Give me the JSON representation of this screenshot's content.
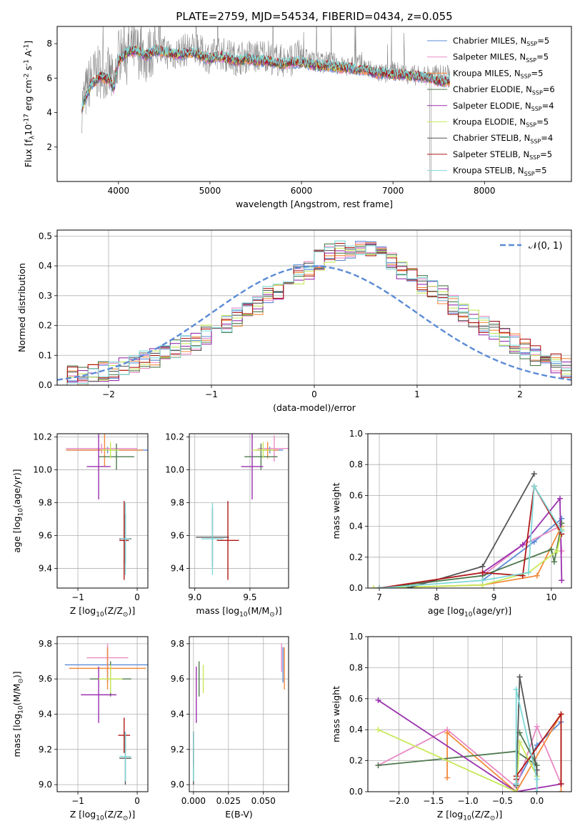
{
  "figure": {
    "title": "PLATE=2759, MJD=54534, FIBERID=0434, z=0.055"
  },
  "models": [
    {
      "label": "Chabrier MILES, N$_{SSP}$=5",
      "name": "Chabrier MILES",
      "nssp": "5",
      "color": "#5b8bd6"
    },
    {
      "label": "Salpeter MILES, N$_{SSP}$=5",
      "name": "Salpeter MILES",
      "nssp": "5",
      "color": "#e98ac5"
    },
    {
      "label": "Kroupa MILES, N$_{SSP}$=5",
      "name": "Kroupa MILES",
      "nssp": "5",
      "color": "#f28a3c"
    },
    {
      "label": "Chabrier ELODIE, N$_{SSP}$=6",
      "name": "Chabrier ELODIE",
      "nssp": "6",
      "color": "#4f7a4f"
    },
    {
      "label": "Salpeter ELODIE, N$_{SSP}$=4",
      "name": "Salpeter ELODIE",
      "nssp": "4",
      "color": "#9a30ae"
    },
    {
      "label": "Kroupa ELODIE, N$_{SSP}$=5",
      "name": "Kroupa ELODIE",
      "nssp": "5",
      "color": "#c8e85a"
    },
    {
      "label": "Chabrier STELIB, N$_{SSP}$=4",
      "name": "Chabrier STELIB",
      "nssp": "4",
      "color": "#555555"
    },
    {
      "label": "Salpeter STELIB, N$_{SSP}$=5",
      "name": "Salpeter STELIB",
      "nssp": "5",
      "color": "#b01818"
    },
    {
      "label": "Kroupa STELIB, N$_{SSP}$=5",
      "name": "Kroupa STELIB",
      "nssp": "5",
      "color": "#7fd8d8"
    }
  ],
  "chart_data": [
    {
      "type": "line",
      "id": "spectrum",
      "title": "PLATE=2759, MJD=54534, FIBERID=0434, z=0.055",
      "xlabel": "wavelength [Angstrom, rest frame]",
      "ylabel": "Flux [f$_\\lambda$10$^{-17}$ erg cm$^{-2}$ s$^{-1}$ A$^{-1}$]",
      "xlim": [
        3330,
        8950
      ],
      "ylim": [
        0,
        9
      ],
      "xticks": [
        4000,
        5000,
        6000,
        7000,
        8000
      ],
      "yticks": [
        2,
        4,
        6,
        8
      ],
      "data_color": "#888888",
      "data_x": [
        3600,
        3700,
        3800,
        3900,
        3950,
        4000,
        4100,
        4200,
        4300,
        4400,
        4500,
        4600,
        4700,
        4800,
        4900,
        5000,
        5100,
        5200,
        5300,
        5400,
        5500,
        5600,
        5700,
        5800,
        5900,
        6000,
        6100,
        6200,
        6300,
        6400,
        6500,
        6600,
        6700,
        6800,
        6900,
        7000,
        7100,
        7200,
        7300,
        7400
      ],
      "data_y": [
        4.4,
        6.0,
        6.4,
        6.2,
        5.6,
        7.3,
        7.7,
        7.6,
        7.2,
        7.8,
        7.5,
        7.4,
        7.6,
        7.7,
        7.5,
        7.2,
        7.5,
        7.3,
        7.1,
        7.3,
        7.2,
        7.4,
        7.1,
        7.0,
        7.1,
        7.3,
        7.0,
        6.9,
        7.0,
        6.8,
        6.6,
        6.9,
        6.6,
        6.4,
        6.2,
        6.4,
        6.3,
        6.2,
        6.1,
        6.2
      ],
      "model_x": [
        3600,
        3700,
        3800,
        3900,
        3950,
        4000,
        4100,
        4200,
        4300,
        4400,
        4500,
        4600,
        4700,
        4800,
        4900,
        5000,
        5100,
        5200,
        5300,
        5400,
        5500,
        5600,
        5700,
        5800,
        5900,
        6000,
        6100,
        6200,
        6300,
        6400,
        6500,
        6600,
        6700,
        6800,
        6900,
        7000,
        7100,
        7200,
        7300,
        7400,
        7500,
        7600
      ],
      "model_y": [
        4.3,
        5.6,
        6.1,
        5.9,
        5.4,
        7.0,
        7.5,
        7.6,
        7.3,
        7.6,
        7.5,
        7.4,
        7.4,
        7.5,
        7.3,
        7.1,
        7.3,
        7.1,
        7.0,
        7.1,
        7.0,
        7.0,
        6.9,
        6.8,
        6.9,
        6.9,
        6.8,
        6.7,
        6.7,
        6.6,
        6.6,
        6.5,
        6.5,
        6.3,
        6.3,
        6.2,
        6.2,
        6.1,
        6.1,
        6.0,
        5.8,
        5.8
      ],
      "legend_loc": "upper right"
    },
    {
      "type": "line",
      "id": "residuals",
      "xlabel": "(data-model)/error",
      "ylabel": "Normed distribution",
      "xlim": [
        -2.5,
        2.5
      ],
      "ylim": [
        0,
        0.52
      ],
      "xticks": [
        -2,
        -1,
        0,
        1,
        2
      ],
      "yticks": [
        0.0,
        0.1,
        0.2,
        0.3,
        0.4,
        0.5
      ],
      "ytick_labels": [
        "0.0",
        "0.1",
        "0.2",
        "0.3",
        "0.4",
        "0.5"
      ],
      "bin_width": 0.1,
      "bins_start": -2.5,
      "hist": [
        0.03,
        0.03,
        0.035,
        0.04,
        0.045,
        0.05,
        0.06,
        0.07,
        0.08,
        0.09,
        0.105,
        0.12,
        0.135,
        0.15,
        0.17,
        0.19,
        0.21,
        0.23,
        0.25,
        0.27,
        0.3,
        0.32,
        0.34,
        0.37,
        0.39,
        0.42,
        0.44,
        0.45,
        0.46,
        0.46,
        0.45,
        0.43,
        0.41,
        0.39,
        0.36,
        0.34,
        0.32,
        0.3,
        0.27,
        0.24,
        0.22,
        0.2,
        0.18,
        0.16,
        0.14,
        0.12,
        0.1,
        0.085,
        0.07,
        0.06
      ],
      "normal_label": "$\\mathcal{N}(0, 1)$",
      "normal_color": "#5b8bd6",
      "legend_loc": "upper right"
    },
    {
      "type": "scatter",
      "id": "age-vs-Z",
      "xlabel": "Z [log$_{10}$(Z/Z$_\\odot$)]",
      "ylabel": "age  [log$_{10}$(age/yr)]",
      "xlim": [
        -1.35,
        0.18
      ],
      "ylim": [
        9.28,
        10.22
      ],
      "xticks": [
        -1,
        0
      ],
      "yticks": [
        9.4,
        9.6,
        9.8,
        10.0,
        10.2
      ],
      "ytick_labels": [
        "9.4",
        "9.6",
        "9.8",
        "10.0",
        "10.2"
      ],
      "points": [
        {
          "x": -0.5,
          "y": 10.12,
          "xerr": 0.7,
          "yerr": 0.02,
          "model": 0
        },
        {
          "x": -0.6,
          "y": 10.13,
          "xerr": 0.6,
          "yerr": 0.03,
          "model": 1
        },
        {
          "x": -0.55,
          "y": 10.12,
          "xerr": 0.65,
          "yerr": 0.1,
          "model": 2
        },
        {
          "x": -0.35,
          "y": 10.08,
          "xerr": 0.3,
          "yerr": 0.08,
          "model": 3
        },
        {
          "x": -0.65,
          "y": 10.02,
          "xerr": 0.2,
          "yerr": 0.2,
          "model": 4
        },
        {
          "x": -0.45,
          "y": 10.12,
          "xerr": 0.15,
          "yerr": 0.05,
          "model": 5
        },
        {
          "x": -0.2,
          "y": 9.58,
          "xerr": 0.1,
          "yerr": 0.15,
          "model": 6
        },
        {
          "x": -0.22,
          "y": 9.57,
          "xerr": 0.08,
          "yerr": 0.24,
          "model": 7
        },
        {
          "x": -0.2,
          "y": 9.58,
          "xerr": 0.08,
          "yerr": 0.22,
          "model": 8
        }
      ]
    },
    {
      "type": "scatter",
      "id": "age-vs-mass",
      "xlabel": "mass [log$_{10}$(M/M$_\\odot$)]",
      "ylabel": "",
      "xlim": [
        8.95,
        9.85
      ],
      "ylim": [
        9.28,
        10.22
      ],
      "xticks": [
        9.0,
        9.5
      ],
      "xtick_labels": [
        "9.0",
        "9.5"
      ],
      "yticks": [
        9.4,
        9.6,
        9.8,
        10.0,
        10.2
      ],
      "ytick_labels": [
        "9.4",
        "9.6",
        "9.8",
        "10.0",
        "10.2"
      ],
      "points": [
        {
          "x": 9.68,
          "y": 10.12,
          "xerr": 0.12,
          "yerr": 0.02,
          "model": 0
        },
        {
          "x": 9.72,
          "y": 10.13,
          "xerr": 0.15,
          "yerr": 0.08,
          "model": 1
        },
        {
          "x": 9.66,
          "y": 10.12,
          "xerr": 0.1,
          "yerr": 0.05,
          "model": 2
        },
        {
          "x": 9.6,
          "y": 10.08,
          "xerr": 0.15,
          "yerr": 0.08,
          "model": 3
        },
        {
          "x": 9.52,
          "y": 10.02,
          "xerr": 0.1,
          "yerr": 0.2,
          "model": 4
        },
        {
          "x": 9.62,
          "y": 10.12,
          "xerr": 0.1,
          "yerr": 0.05,
          "model": 5
        },
        {
          "x": 9.16,
          "y": 9.59,
          "xerr": 0.15,
          "yerr": 0.18,
          "model": 6
        },
        {
          "x": 9.3,
          "y": 9.57,
          "xerr": 0.1,
          "yerr": 0.24,
          "model": 7
        },
        {
          "x": 9.16,
          "y": 9.58,
          "xerr": 0.1,
          "yerr": 0.22,
          "model": 8
        }
      ]
    },
    {
      "type": "line",
      "id": "mass-weight-vs-age",
      "xlabel": "age  [log$_{10}$(age/yr)]",
      "ylabel": "mass weight",
      "xlim": [
        6.8,
        10.35
      ],
      "ylim": [
        0,
        1
      ],
      "xticks": [
        7,
        8,
        9,
        10
      ],
      "yticks": [
        0.0,
        0.2,
        0.4,
        0.6,
        0.8,
        1.0
      ],
      "ytick_labels": [
        "0.0",
        "0.2",
        "0.4",
        "0.6",
        "0.8",
        "1.0"
      ],
      "series": [
        {
          "model": 0,
          "x": [
            8.8,
            9.7,
            10.18
          ],
          "y": [
            0.05,
            0.3,
            0.45
          ]
        },
        {
          "model": 1,
          "x": [
            8.8,
            9.5,
            10.15,
            10.18
          ],
          "y": [
            0.08,
            0.28,
            0.4,
            0.24
          ]
        },
        {
          "model": 2,
          "x": [
            7.0,
            8.8,
            9.75,
            10.15,
            10.18
          ],
          "y": [
            0.0,
            0.02,
            0.08,
            0.38,
            0.4
          ]
        },
        {
          "model": 3,
          "x": [
            7.0,
            8.8,
            10.0,
            10.05,
            10.18
          ],
          "y": [
            0.0,
            0.08,
            0.25,
            0.17,
            0.42
          ]
        },
        {
          "model": 4,
          "x": [
            8.8,
            9.5,
            10.15,
            10.18
          ],
          "y": [
            0.1,
            0.28,
            0.58,
            0.05
          ]
        },
        {
          "model": 5,
          "x": [
            6.9,
            8.8,
            9.6,
            10.1,
            10.18
          ],
          "y": [
            0.0,
            0.02,
            0.1,
            0.24,
            0.38
          ]
        },
        {
          "model": 6,
          "x": [
            7.5,
            8.8,
            9.7
          ],
          "y": [
            0.0,
            0.14,
            0.74
          ]
        },
        {
          "model": 7,
          "x": [
            7.0,
            8.8,
            9.5,
            9.7,
            10.18
          ],
          "y": [
            0.0,
            0.1,
            0.08,
            0.66,
            0.35
          ]
        },
        {
          "model": 8,
          "x": [
            7.0,
            8.8,
            9.6,
            9.7,
            10.18
          ],
          "y": [
            0.0,
            0.05,
            0.1,
            0.66,
            0.37
          ]
        }
      ]
    },
    {
      "type": "scatter",
      "id": "mass-vs-Z",
      "xlabel": "Z [log$_{10}$(Z/Z$_\\odot$)]",
      "ylabel": "mass [log$_{10}$(M/M$_\\odot$)]",
      "xlim": [
        -1.35,
        0.18
      ],
      "ylim": [
        8.96,
        9.84
      ],
      "xticks": [
        -1,
        0
      ],
      "yticks": [
        9.0,
        9.2,
        9.4,
        9.6,
        9.8
      ],
      "ytick_labels": [
        "9.0",
        "9.2",
        "9.4",
        "9.6",
        "9.8"
      ],
      "points": [
        {
          "x": -0.5,
          "y": 9.68,
          "xerr": 0.72,
          "yerr": 0.1,
          "model": 0
        },
        {
          "x": -0.5,
          "y": 9.72,
          "xerr": 0.35,
          "yerr": 0.08,
          "model": 1
        },
        {
          "x": -0.5,
          "y": 9.66,
          "xerr": 0.65,
          "yerr": 0.12,
          "model": 2
        },
        {
          "x": -0.45,
          "y": 9.6,
          "xerr": 0.35,
          "yerr": 0.1,
          "model": 3
        },
        {
          "x": -0.65,
          "y": 9.51,
          "xerr": 0.3,
          "yerr": 0.16,
          "model": 4
        },
        {
          "x": -0.45,
          "y": 9.6,
          "xerr": 0.2,
          "yerr": 0.08,
          "model": 5
        },
        {
          "x": -0.2,
          "y": 9.15,
          "xerr": 0.1,
          "yerr": 0.15,
          "model": 6
        },
        {
          "x": -0.22,
          "y": 9.28,
          "xerr": 0.1,
          "yerr": 0.1,
          "model": 7
        },
        {
          "x": -0.2,
          "y": 9.16,
          "xerr": 0.1,
          "yerr": 0.14,
          "model": 8
        }
      ]
    },
    {
      "type": "scatter",
      "id": "mass-vs-ebv",
      "xlabel": "E(B-V)",
      "ylabel": "",
      "xlim": [
        -0.003,
        0.068
      ],
      "ylim": [
        8.96,
        9.84
      ],
      "xticks": [
        0.0,
        0.025,
        0.05
      ],
      "xtick_labels": [
        "0.000",
        "0.025",
        "0.050"
      ],
      "yticks": [
        9.0,
        9.2,
        9.4,
        9.6,
        9.8
      ],
      "ytick_labels": [
        "9.0",
        "9.2",
        "9.4",
        "9.6",
        "9.8"
      ],
      "points": [
        {
          "x": 0.064,
          "y": 9.68,
          "xerr": 0.0,
          "yerr": 0.1,
          "model": 0
        },
        {
          "x": 0.063,
          "y": 9.72,
          "xerr": 0.0,
          "yerr": 0.08,
          "model": 1
        },
        {
          "x": 0.065,
          "y": 9.66,
          "xerr": 0.0,
          "yerr": 0.12,
          "model": 2
        },
        {
          "x": 0.004,
          "y": 9.6,
          "xerr": 0.0,
          "yerr": 0.1,
          "model": 3
        },
        {
          "x": 0.002,
          "y": 9.51,
          "xerr": 0.0,
          "yerr": 0.16,
          "model": 4
        },
        {
          "x": 0.007,
          "y": 9.6,
          "xerr": 0.0,
          "yerr": 0.08,
          "model": 5
        },
        {
          "x": 0.0,
          "y": 9.15,
          "xerr": 0.0,
          "yerr": 0.15,
          "model": 6
        },
        {
          "x": 0.0,
          "y": 9.2,
          "xerr": 0.0,
          "yerr": 0.1,
          "model": 7
        },
        {
          "x": 0.0,
          "y": 9.16,
          "xerr": 0.0,
          "yerr": 0.14,
          "model": 8
        }
      ]
    },
    {
      "type": "line",
      "id": "mass-weight-vs-Z",
      "xlabel": "Z [log$_{10}$(Z/Z$_\\odot$)]",
      "ylabel": "mass weight",
      "xlim": [
        -2.45,
        0.5
      ],
      "ylim": [
        0,
        1
      ],
      "xticks": [
        -2.0,
        -1.5,
        -1.0,
        -0.5,
        0.0
      ],
      "xtick_labels": [
        "−2.0",
        "−1.5",
        "−1.0",
        "−0.5",
        "0.0"
      ],
      "yticks": [
        0.0,
        0.2,
        0.4,
        0.6,
        0.8,
        1.0
      ],
      "ytick_labels": [
        "0.0",
        "0.2",
        "0.4",
        "0.6",
        "0.8",
        "1.0"
      ],
      "series": [
        {
          "model": 0,
          "x": [
            -0.3,
            0.0,
            0.35
          ],
          "y": [
            0.05,
            0.3,
            0.45
          ]
        },
        {
          "model": 1,
          "x": [
            -2.3,
            -1.3,
            -0.3,
            0.0,
            0.35
          ],
          "y": [
            0.17,
            0.4,
            0.03,
            0.42,
            0.05
          ]
        },
        {
          "model": 2,
          "x": [
            -1.3,
            -1.3,
            -0.3,
            0.35,
            0.35
          ],
          "y": [
            0.09,
            0.38,
            0.0,
            0.5,
            0.0
          ]
        },
        {
          "model": 3,
          "x": [
            -2.3,
            -0.3,
            0.0,
            -0.25
          ],
          "y": [
            0.17,
            0.26,
            0.17,
            0.38
          ]
        },
        {
          "model": 4,
          "x": [
            -2.3,
            -0.3,
            0.35
          ],
          "y": [
            0.59,
            0.0,
            0.05
          ]
        },
        {
          "model": 5,
          "x": [
            -2.3,
            -0.3,
            -0.25,
            0.0
          ],
          "y": [
            0.4,
            0.0,
            0.32,
            0.1
          ]
        },
        {
          "model": 6,
          "x": [
            -0.3,
            -0.25,
            0.0,
            0.0
          ],
          "y": [
            0.04,
            0.74,
            0.14,
            0.0
          ]
        },
        {
          "model": 7,
          "x": [
            -0.3,
            -0.3,
            0.35,
            0.35
          ],
          "y": [
            0.08,
            0.1,
            0.5,
            0.05
          ]
        },
        {
          "model": 8,
          "x": [
            -0.3,
            -0.3,
            0.0,
            0.0
          ],
          "y": [
            0.05,
            0.66,
            0.08,
            0.0
          ]
        }
      ]
    }
  ]
}
